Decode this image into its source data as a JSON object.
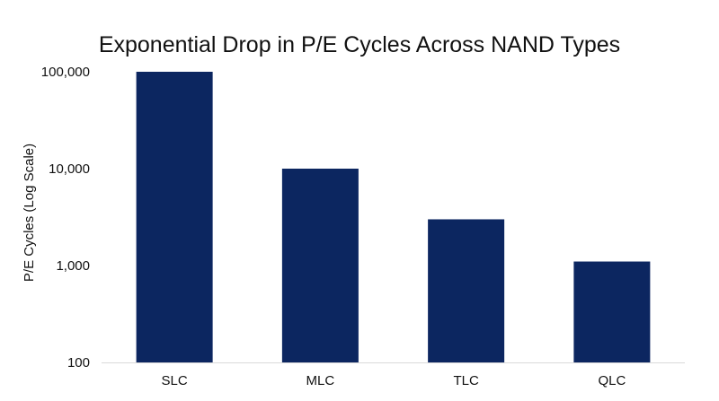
{
  "chart_data": {
    "type": "bar",
    "title": "Exponential Drop in P/E Cycles Across NAND Types",
    "xlabel": "",
    "ylabel": "P/E Cycles (Log Scale)",
    "y_scale": "log",
    "ylim": [
      100,
      100000
    ],
    "y_ticks": [
      100,
      1000,
      10000,
      100000
    ],
    "y_tick_labels": [
      "100",
      "1,000",
      "10,000",
      "100,000"
    ],
    "categories": [
      "SLC",
      "MLC",
      "TLC",
      "QLC"
    ],
    "values": [
      100000,
      10000,
      3000,
      1100
    ],
    "bar_color": "#0c2660",
    "axis_color": "#d9d9d9",
    "grid": false,
    "legend": "none"
  }
}
